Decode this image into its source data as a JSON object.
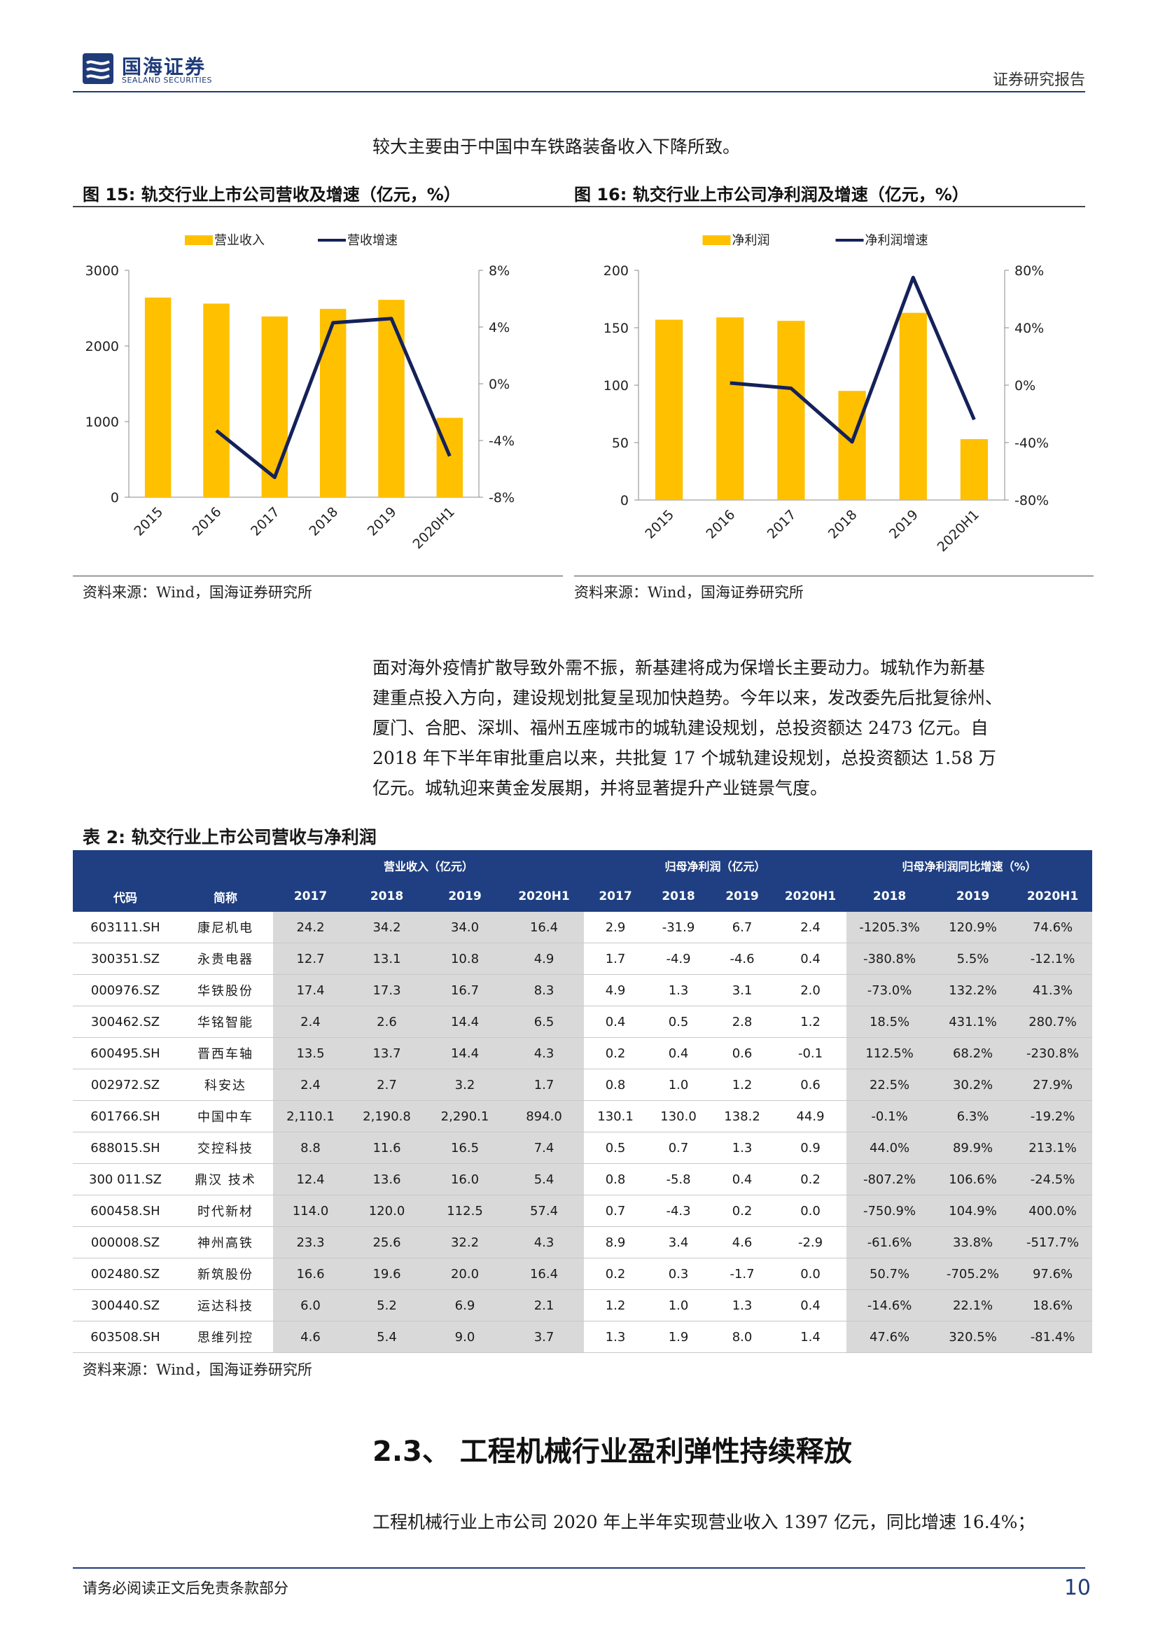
{
  "header": {
    "logo_cn": "国海证券",
    "logo_en": "SEALAND SECURITIES",
    "report_type": "证券研究报告"
  },
  "intro_line": "较大主要由于中国中车铁路装备收入下降所致。",
  "figure15": {
    "caption": "图 15:  轨交行业上市公司营收及增速（亿元，%）",
    "source": "资料来源：Wind，国海证券研究所"
  },
  "figure16": {
    "caption": "图 16:  轨交行业上市公司净利润及增速（亿元，%）",
    "source": "资料来源：Wind，国海证券研究所"
  },
  "chart_data": [
    {
      "type": "bar",
      "categories": [
        "2015",
        "2016",
        "2017",
        "2018",
        "2019",
        "2020H1"
      ],
      "series": [
        {
          "name": "营业收入",
          "type": "bar",
          "axis": "left",
          "color": "#ffc000",
          "values": [
            2640,
            2560,
            2390,
            2490,
            2610,
            1050
          ]
        },
        {
          "name": "营收增速",
          "type": "line",
          "axis": "right",
          "color": "#14215a",
          "values": [
            null,
            -3.3,
            -6.6,
            4.3,
            4.6,
            -5.1
          ]
        }
      ],
      "y_left": {
        "min": 0,
        "max": 3000,
        "ticks": [
          "0",
          "1000",
          "2000",
          "3000"
        ]
      },
      "y_right": {
        "min": -8,
        "max": 8,
        "ticks": [
          "-8%",
          "-4%",
          "0%",
          "4%",
          "8%"
        ]
      },
      "legend": "top-center",
      "grid": false
    },
    {
      "type": "bar",
      "categories": [
        "2015",
        "2016",
        "2017",
        "2018",
        "2019",
        "2020H1"
      ],
      "series": [
        {
          "name": "净利润",
          "type": "bar",
          "axis": "left",
          "color": "#ffc000",
          "values": [
            157,
            159,
            156,
            95,
            163,
            53
          ]
        },
        {
          "name": "净利润增速",
          "type": "line",
          "axis": "right",
          "color": "#14215a",
          "values": [
            null,
            1.5,
            -2.2,
            -39.5,
            75.0,
            -24.0
          ]
        }
      ],
      "y_left": {
        "min": 0,
        "max": 200,
        "ticks": [
          "0",
          "50",
          "100",
          "150",
          "200"
        ]
      },
      "y_right": {
        "min": -80,
        "max": 80,
        "ticks": [
          "-80%",
          "-40%",
          "0%",
          "40%",
          "80%"
        ]
      },
      "legend": "top-center",
      "grid": false
    }
  ],
  "paragraph": [
    "面对海外疫情扩散导致外需不振，新基建将成为保增长主要动力。城轨作为新基",
    "建重点投入方向，建设规划批复呈现加快趋势。今年以来，发改委先后批复徐州、",
    "厦门、合肥、深圳、福州五座城市的城轨建设规划，总投资额达 2473 亿元。自",
    "2018 年下半年审批重启以来，共批复 17 个城轨建设规划，总投资额达 1.58 万",
    "亿元。城轨迎来黄金发展期，并将显著提升产业链景气度。"
  ],
  "table": {
    "title": "表 2:  轨交行业上市公司营收与净利润",
    "group_headers": [
      "营业收入（亿元）",
      "归母净利润（亿元）",
      "归母净利润同比增速（%）"
    ],
    "col_headers": [
      "代码",
      "简称",
      "2017",
      "2018",
      "2019",
      "2020H1",
      "2017",
      "2018",
      "2019",
      "2020H1",
      "2018",
      "2019",
      "2020H1"
    ],
    "rows": [
      [
        "603111.SH",
        "康尼机电",
        "24.2",
        "34.2",
        "34.0",
        "16.4",
        "2.9",
        "-31.9",
        "6.7",
        "2.4",
        "-1205.3%",
        "120.9%",
        "74.6%"
      ],
      [
        "300351.SZ",
        "永贵电器",
        "12.7",
        "13.1",
        "10.8",
        "4.9",
        "1.7",
        "-4.9",
        "-4.6",
        "0.4",
        "-380.8%",
        "5.5%",
        "-12.1%"
      ],
      [
        "000976.SZ",
        "华铁股份",
        "17.4",
        "17.3",
        "16.7",
        "8.3",
        "4.9",
        "1.3",
        "3.1",
        "2.0",
        "-73.0%",
        "132.2%",
        "41.3%"
      ],
      [
        "300462.SZ",
        "华铭智能",
        "2.4",
        "2.6",
        "14.4",
        "6.5",
        "0.4",
        "0.5",
        "2.8",
        "1.2",
        "18.5%",
        "431.1%",
        "280.7%"
      ],
      [
        "600495.SH",
        "晋西车轴",
        "13.5",
        "13.7",
        "14.4",
        "4.3",
        "0.2",
        "0.4",
        "0.6",
        "-0.1",
        "112.5%",
        "68.2%",
        "-230.8%"
      ],
      [
        "002972.SZ",
        "科安达",
        "2.4",
        "2.7",
        "3.2",
        "1.7",
        "0.8",
        "1.0",
        "1.2",
        "0.6",
        "22.5%",
        "30.2%",
        "27.9%"
      ],
      [
        "601766.SH",
        "中国中车",
        "2,110.1",
        "2,190.8",
        "2,290.1",
        "894.0",
        "130.1",
        "130.0",
        "138.2",
        "44.9",
        "-0.1%",
        "6.3%",
        "-19.2%"
      ],
      [
        "688015.SH",
        "交控科技",
        "8.8",
        "11.6",
        "16.5",
        "7.4",
        "0.5",
        "0.7",
        "1.3",
        "0.9",
        "44.0%",
        "89.9%",
        "213.1%"
      ],
      [
        "300 011.SZ",
        "鼎汉 技术",
        "12.4",
        "13.6",
        "16.0",
        "5.4",
        "0.8",
        "-5.8",
        "0.4",
        "0.2",
        "-807.2%",
        "106.6%",
        "-24.5%"
      ],
      [
        "600458.SH",
        "时代新材",
        "114.0",
        "120.0",
        "112.5",
        "57.4",
        "0.7",
        "-4.3",
        "0.2",
        "0.0",
        "-750.9%",
        "104.9%",
        "400.0%"
      ],
      [
        "000008.SZ",
        "神州高铁",
        "23.3",
        "25.6",
        "32.2",
        "4.3",
        "8.9",
        "3.4",
        "4.6",
        "-2.9",
        "-61.6%",
        "33.8%",
        "-517.7%"
      ],
      [
        "002480.SZ",
        "新筑股份",
        "16.6",
        "19.6",
        "20.0",
        "16.4",
        "0.2",
        "0.3",
        "-1.7",
        "0.0",
        "50.7%",
        "-705.2%",
        "97.6%"
      ],
      [
        "300440.SZ",
        "运达科技",
        "6.0",
        "5.2",
        "6.9",
        "2.1",
        "1.2",
        "1.0",
        "1.3",
        "0.4",
        "-14.6%",
        "22.1%",
        "18.6%"
      ],
      [
        "603508.SH",
        "思维列控",
        "4.6",
        "5.4",
        "9.0",
        "3.7",
        "1.3",
        "1.9",
        "8.0",
        "1.4",
        "47.6%",
        "320.5%",
        "-81.4%"
      ]
    ],
    "source": "资料来源：Wind，国海证券研究所"
  },
  "section": {
    "number": "2.3、",
    "title": "工程机械行业盈利弹性持续释放"
  },
  "closing_line": "工程机械行业上市公司 2020 年上半年实现营业收入 1397 亿元，同比增速 16.4%；",
  "footer": {
    "disclaimer": "请务必阅读正文后免责条款部分",
    "page": "10"
  }
}
